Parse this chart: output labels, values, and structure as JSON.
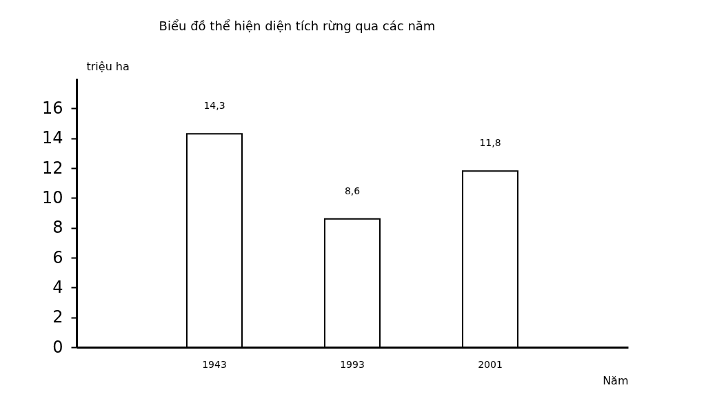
{
  "chart_data": {
    "type": "bar",
    "title": "Biểu đồ thể hiện diện tích rừng qua các năm",
    "xlabel": "Năm",
    "ylabel": "triệu ha",
    "categories": [
      "1943",
      "1993",
      "2001"
    ],
    "values": [
      14.3,
      8.6,
      11.8
    ],
    "value_labels": [
      "14,3",
      "8,6",
      "11,8"
    ],
    "color": "#ffffff",
    "ylim": [
      0,
      18
    ],
    "yticks": [
      0,
      2,
      4,
      6,
      8,
      10,
      12,
      14,
      16
    ],
    "grid": false
  }
}
